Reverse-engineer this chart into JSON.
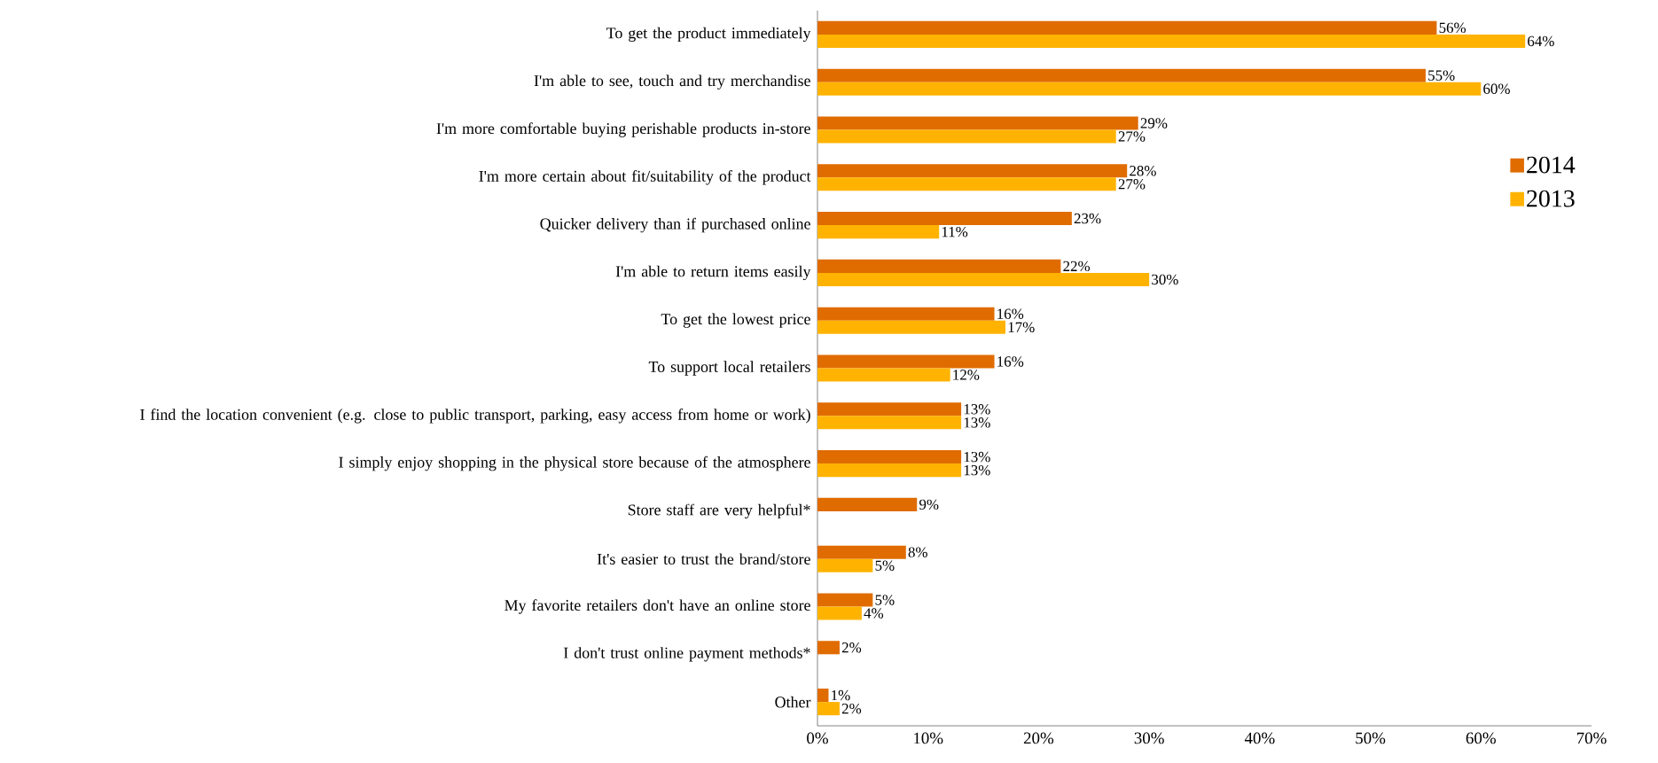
{
  "chart_data": {
    "type": "bar",
    "orientation": "horizontal",
    "categories": [
      "To get the product immediately",
      "I'm able to see, touch and try merchandise",
      "I'm more comfortable buying perishable products in-store",
      "I'm more certain about fit/suitability of the product",
      "Quicker delivery than if purchased online",
      "I'm able to return items easily",
      "To get the lowest price",
      "To support local retailers",
      "I find the location convenient (e.g. close to public transport, parking, easy access from home or work)",
      "I simply enjoy shopping in the physical store because of the atmosphere",
      "Store staff are very helpful*",
      "It's easier to trust the brand/store",
      "My favorite retailers don't have an online store",
      "I don't trust online payment methods*",
      "Other"
    ],
    "series": [
      {
        "name": "2014",
        "color": "#e06c00",
        "values": [
          56,
          55,
          29,
          28,
          23,
          22,
          16,
          16,
          13,
          13,
          9,
          8,
          5,
          2,
          1
        ],
        "value_labels": [
          "56%",
          "55%",
          "29%",
          "28%",
          "23%",
          "22%",
          "16%",
          "16%",
          "13%",
          "13%",
          "9%",
          "8%",
          "5%",
          "2%",
          "1%"
        ]
      },
      {
        "name": "2013",
        "color": "#ffb300",
        "values": [
          64,
          60,
          27,
          27,
          11,
          30,
          17,
          12,
          13,
          13,
          null,
          5,
          4,
          null,
          2
        ],
        "value_labels": [
          "64%",
          "60%",
          "27%",
          "27%",
          "11%",
          "30%",
          "17%",
          "12%",
          "13%",
          "13%",
          null,
          "5%",
          "4%",
          null,
          "2%"
        ]
      }
    ],
    "xlim": [
      0,
      70
    ],
    "xticks": [
      {
        "value": 0,
        "label": "0%"
      },
      {
        "value": 10,
        "label": "10%"
      },
      {
        "value": 20,
        "label": "20%"
      },
      {
        "value": 30,
        "label": "30%"
      },
      {
        "value": 40,
        "label": "40%"
      },
      {
        "value": 50,
        "label": "50%"
      },
      {
        "value": 60,
        "label": "60%"
      },
      {
        "value": 70,
        "label": "70%"
      }
    ],
    "legend": "right"
  }
}
